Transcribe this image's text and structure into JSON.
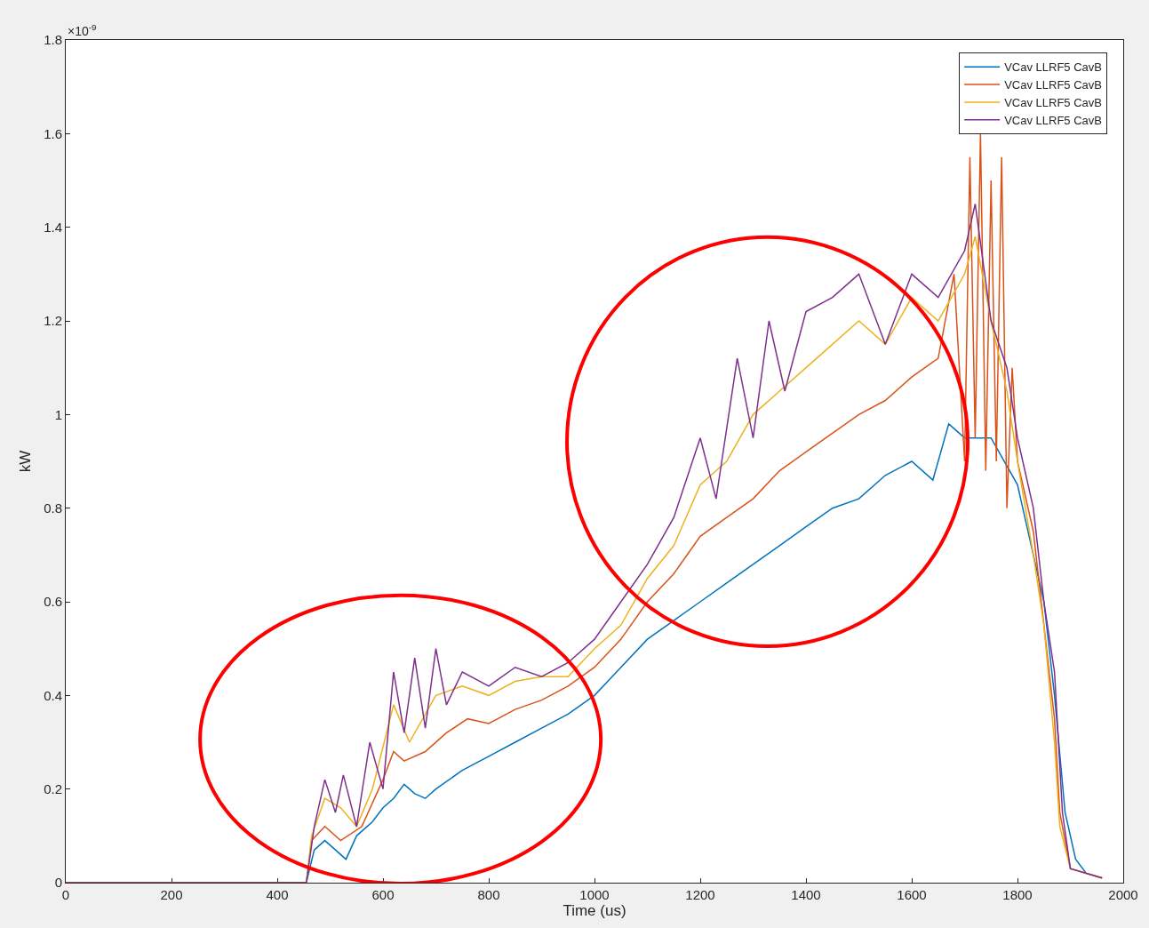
{
  "chart_data": {
    "type": "line",
    "xlabel": "Time (us)",
    "ylabel": "kW",
    "annotations": [
      "×10$^{-9}$"
    ],
    "xlim": [
      0,
      2000
    ],
    "xticks": [
      0,
      200,
      400,
      600,
      800,
      1000,
      1200,
      1400,
      1600,
      1800,
      2000
    ],
    "ylim": [
      0,
      1.8
    ],
    "yticks": [
      0,
      0.2,
      0.4,
      0.6,
      0.8,
      1,
      1.2,
      1.4,
      1.6,
      1.8
    ],
    "legend": "top right",
    "line_style": "solid",
    "marker": "none",
    "series": [
      {
        "name": "VCav LLRF5 CavB",
        "color": "#0072bd",
        "x": [
          0,
          455,
          470,
          490,
          510,
          530,
          550,
          580,
          600,
          620,
          640,
          660,
          680,
          700,
          750,
          800,
          850,
          900,
          950,
          1000,
          1050,
          1100,
          1150,
          1200,
          1250,
          1300,
          1350,
          1400,
          1450,
          1500,
          1550,
          1600,
          1640,
          1670,
          1700,
          1750,
          1800,
          1830,
          1850,
          1870,
          1890,
          1910,
          1930,
          1960
        ],
        "values": [
          0,
          0,
          0.07,
          0.09,
          0.07,
          0.05,
          0.1,
          0.13,
          0.16,
          0.18,
          0.21,
          0.19,
          0.18,
          0.2,
          0.24,
          0.27,
          0.3,
          0.33,
          0.36,
          0.4,
          0.46,
          0.52,
          0.56,
          0.6,
          0.64,
          0.68,
          0.72,
          0.76,
          0.8,
          0.82,
          0.87,
          0.9,
          0.86,
          0.98,
          0.95,
          0.95,
          0.85,
          0.7,
          0.6,
          0.4,
          0.15,
          0.05,
          0.02,
          0.01
        ]
      },
      {
        "name": "VCav LLRF5 CavB",
        "color": "#d95319",
        "x": [
          0,
          455,
          465,
          490,
          520,
          560,
          600,
          620,
          640,
          680,
          720,
          760,
          800,
          850,
          900,
          950,
          1000,
          1050,
          1100,
          1150,
          1200,
          1250,
          1300,
          1350,
          1400,
          1450,
          1500,
          1550,
          1600,
          1650,
          1680,
          1700,
          1710,
          1720,
          1730,
          1740,
          1750,
          1760,
          1770,
          1780,
          1790,
          1800,
          1830,
          1850,
          1870,
          1880,
          1900,
          1960
        ],
        "values": [
          0,
          0,
          0.09,
          0.12,
          0.09,
          0.12,
          0.22,
          0.28,
          0.26,
          0.28,
          0.32,
          0.35,
          0.34,
          0.37,
          0.39,
          0.42,
          0.46,
          0.52,
          0.6,
          0.66,
          0.74,
          0.78,
          0.82,
          0.88,
          0.92,
          0.96,
          1,
          1.03,
          1.08,
          1.12,
          1.3,
          0.9,
          1.55,
          0.95,
          1.6,
          0.88,
          1.5,
          0.9,
          1.55,
          0.8,
          1.1,
          0.9,
          0.75,
          0.55,
          0.35,
          0.15,
          0.03,
          0.01
        ]
      },
      {
        "name": "VCav LLRF5 CavB",
        "color": "#edb120",
        "x": [
          0,
          455,
          465,
          490,
          520,
          550,
          580,
          620,
          650,
          700,
          750,
          800,
          850,
          900,
          950,
          1000,
          1050,
          1100,
          1150,
          1200,
          1250,
          1300,
          1350,
          1400,
          1450,
          1500,
          1550,
          1600,
          1650,
          1700,
          1720,
          1750,
          1780,
          1800,
          1830,
          1850,
          1870,
          1880,
          1900,
          1960
        ],
        "values": [
          0,
          0,
          0.1,
          0.18,
          0.16,
          0.12,
          0.2,
          0.38,
          0.3,
          0.4,
          0.42,
          0.4,
          0.43,
          0.44,
          0.44,
          0.5,
          0.55,
          0.65,
          0.72,
          0.85,
          0.9,
          1,
          1.05,
          1.1,
          1.15,
          1.2,
          1.15,
          1.25,
          1.2,
          1.3,
          1.38,
          1.2,
          1.05,
          0.9,
          0.7,
          0.55,
          0.3,
          0.12,
          0.03,
          0.01
        ]
      },
      {
        "name": "VCav LLRF5 CavB",
        "color": "#7e2f8e",
        "x": [
          0,
          455,
          470,
          490,
          510,
          525,
          550,
          575,
          600,
          620,
          640,
          660,
          680,
          700,
          720,
          750,
          800,
          850,
          900,
          950,
          1000,
          1050,
          1100,
          1150,
          1200,
          1230,
          1270,
          1300,
          1330,
          1360,
          1400,
          1450,
          1500,
          1550,
          1600,
          1650,
          1700,
          1720,
          1750,
          1780,
          1800,
          1830,
          1850,
          1870,
          1885,
          1900,
          1960
        ],
        "values": [
          0,
          0,
          0.12,
          0.22,
          0.15,
          0.23,
          0.12,
          0.3,
          0.2,
          0.45,
          0.32,
          0.48,
          0.33,
          0.5,
          0.38,
          0.45,
          0.42,
          0.46,
          0.44,
          0.47,
          0.52,
          0.6,
          0.68,
          0.78,
          0.95,
          0.82,
          1.12,
          0.95,
          1.2,
          1.05,
          1.22,
          1.25,
          1.3,
          1.15,
          1.3,
          1.25,
          1.35,
          1.45,
          1.2,
          1.1,
          0.95,
          0.8,
          0.6,
          0.45,
          0.15,
          0.03,
          0.01
        ]
      }
    ]
  }
}
